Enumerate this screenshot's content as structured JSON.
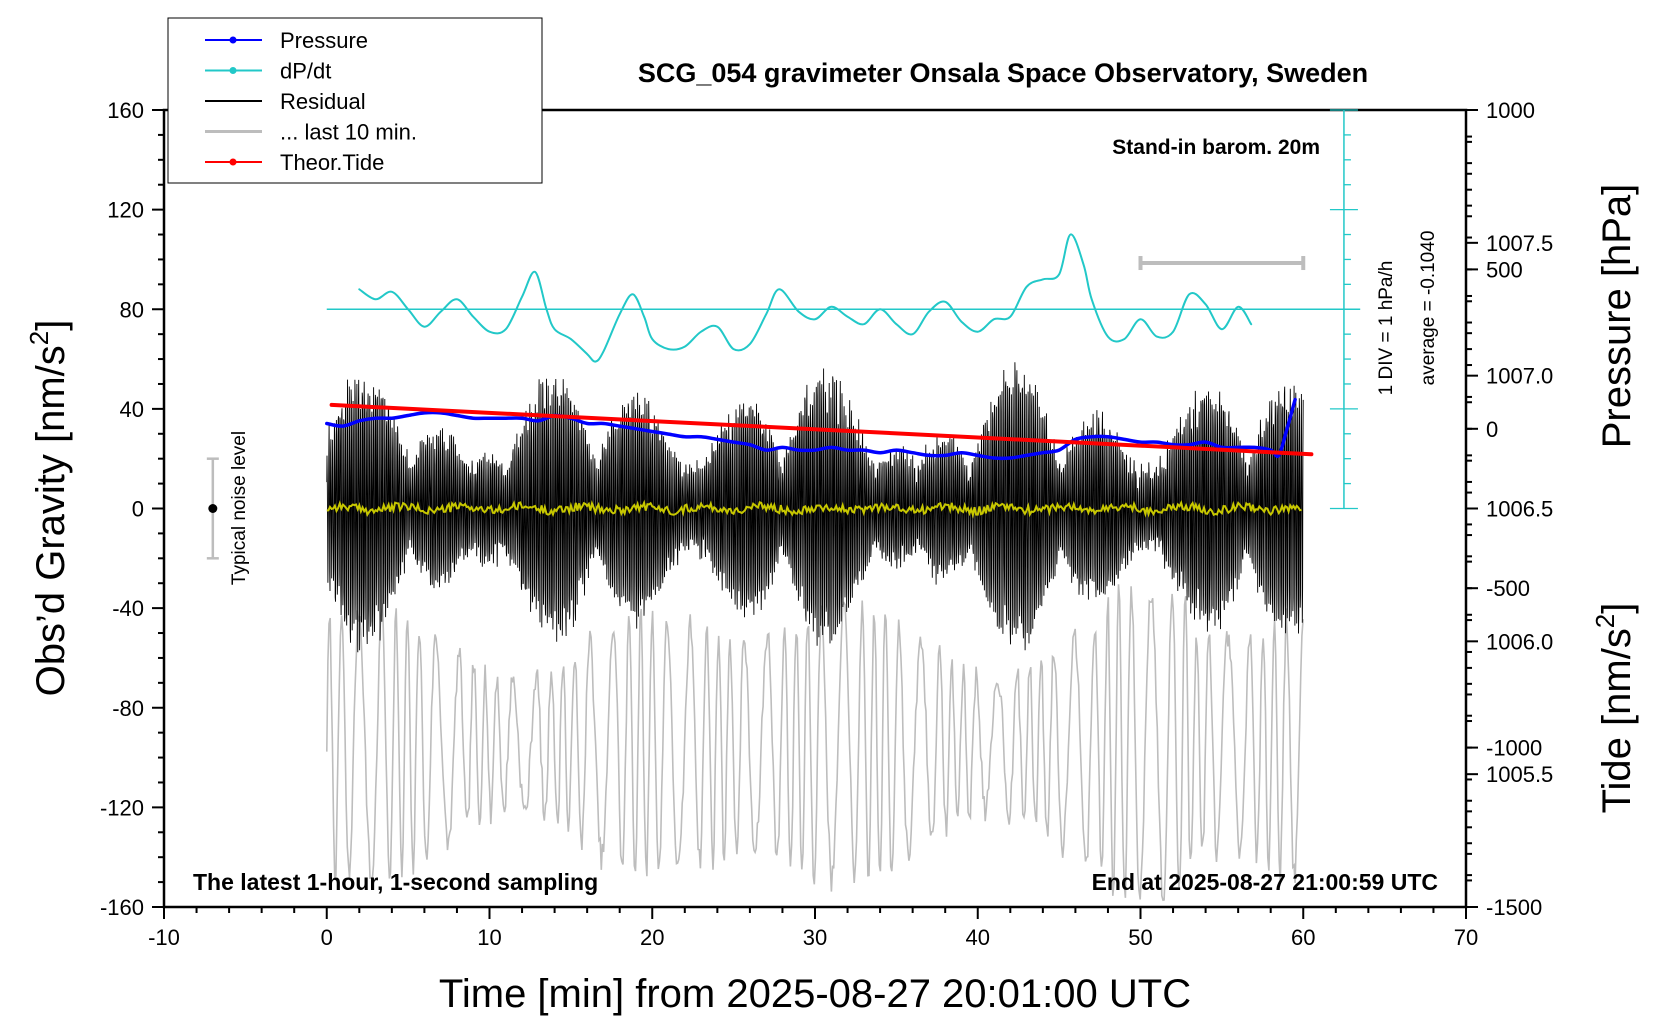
{
  "chart_data": {
    "type": "line",
    "title": "SCG_054 gravimeter Onsala Space Observatory, Sweden",
    "xlabel": "Time [min] from 2025-08-27 20:01:00 UTC",
    "ylabel_left": "Obs’d Gravity [nm/s",
    "ylabel_left_sup": "2",
    "ylabel_left_end": "]",
    "ylabel_right_pressure": "Pressure [hPa]",
    "ylabel_right_tide": "Tide [nm/s",
    "ylabel_right_tide_sup": "2",
    "ylabel_right_tide_end": "]",
    "xlim": [
      -10,
      70
    ],
    "ylim_left": [
      -160,
      160
    ],
    "x_ticks": [
      "-10",
      "0",
      "10",
      "20",
      "30",
      "40",
      "50",
      "60",
      "70"
    ],
    "y_ticks_left": [
      "160",
      "120",
      "80",
      "40",
      "0",
      "-40",
      "-80",
      "-120",
      "-160"
    ],
    "pressure_axis": {
      "ylim": [
        1005.0,
        1008.0
      ],
      "ticks": [
        "1007.5",
        "1007.0",
        "1006.5",
        "1006.0",
        "1005.5"
      ]
    },
    "tide_axis": {
      "ylim": [
        -1500,
        1000
      ],
      "ticks": [
        "1000",
        "500",
        "0",
        "-500",
        "-1000",
        "-1500"
      ]
    },
    "legend": {
      "placement": "top-left",
      "entries": [
        {
          "label": "Pressure",
          "color": "#0000ff",
          "marker": true
        },
        {
          "label": "dP/dt",
          "color": "#22c8c8",
          "marker": true
        },
        {
          "label": "Residual",
          "color": "#000000",
          "marker": false
        },
        {
          "label": "... last 10 min.",
          "color": "#bdbdbd",
          "marker": false
        },
        {
          "label": "Theor.Tide",
          "color": "#ff0000",
          "marker": true
        }
      ]
    },
    "annotations": {
      "barometer": "Stand-in barom. 20m",
      "dpdt_scale": "1 DIV = 1 hPa/h",
      "dpdt_average": "average = -0.1040",
      "noise_label": "Typical noise level",
      "bottom_left": "The latest 1-hour, 1-second sampling",
      "bottom_right": "End at 2025-08-27 21:00:59 UTC"
    },
    "noise_level": {
      "x": -7,
      "center": 0,
      "range": [
        -20,
        20
      ]
    },
    "last10_bar": {
      "y": 520,
      "x_range": [
        50,
        60
      ]
    },
    "series": [
      {
        "name": "Pressure",
        "axis": "pressure",
        "color": "#0000ff",
        "x": [
          0,
          1,
          2,
          3,
          4,
          5,
          6,
          7,
          8,
          9,
          10,
          11,
          12,
          13,
          14,
          15,
          16,
          17,
          18,
          19,
          20,
          21,
          22,
          23,
          24,
          25,
          26,
          27,
          28,
          29,
          30,
          31,
          32,
          33,
          34,
          35,
          36,
          37,
          38,
          39,
          40,
          41,
          42,
          43,
          44,
          45,
          46,
          47,
          48,
          49,
          50,
          51,
          52,
          53,
          54,
          55,
          56,
          57,
          58,
          58.5,
          59,
          59.5
        ],
        "values": [
          1006.82,
          1006.81,
          1006.83,
          1006.84,
          1006.84,
          1006.85,
          1006.86,
          1006.86,
          1006.85,
          1006.84,
          1006.84,
          1006.84,
          1006.84,
          1006.83,
          1006.85,
          1006.84,
          1006.82,
          1006.82,
          1006.81,
          1006.8,
          1006.79,
          1006.78,
          1006.77,
          1006.77,
          1006.76,
          1006.75,
          1006.74,
          1006.72,
          1006.73,
          1006.72,
          1006.72,
          1006.73,
          1006.72,
          1006.72,
          1006.71,
          1006.72,
          1006.71,
          1006.7,
          1006.7,
          1006.71,
          1006.7,
          1006.69,
          1006.69,
          1006.7,
          1006.71,
          1006.72,
          1006.76,
          1006.77,
          1006.77,
          1006.76,
          1006.75,
          1006.75,
          1006.74,
          1006.74,
          1006.75,
          1006.73,
          1006.73,
          1006.73,
          1006.72,
          1006.7,
          1006.8,
          1006.91
        ]
      },
      {
        "name": "dP/dt",
        "axis": "left",
        "color": "#22c8c8",
        "x": [
          2,
          3,
          4,
          5,
          6,
          7,
          8,
          9,
          10,
          11,
          12,
          12.8,
          13.5,
          14,
          15,
          16,
          16.5,
          17,
          18,
          18.8,
          19.5,
          20,
          21,
          22,
          23,
          24,
          25,
          26,
          27,
          27.8,
          29,
          30,
          31,
          32,
          33,
          34,
          35,
          36,
          37,
          38,
          39,
          40,
          41,
          42,
          43,
          44,
          45,
          45.7,
          46.5,
          47,
          48,
          49,
          50,
          51,
          52,
          53,
          54,
          55,
          56,
          56.8
        ],
        "values": [
          88,
          84,
          87,
          80,
          73,
          79,
          84,
          77,
          71,
          72,
          85,
          95,
          80,
          72,
          68,
          62,
          59,
          63,
          78,
          86,
          77,
          68,
          64,
          65,
          71,
          73,
          64,
          66,
          78,
          88,
          79,
          76,
          81,
          77,
          74,
          80,
          74,
          70,
          79,
          83,
          75,
          71,
          76,
          77,
          89,
          92,
          94,
          110,
          98,
          84,
          69,
          68,
          76,
          69,
          71,
          86,
          82,
          72,
          81,
          74
        ]
      },
      {
        "name": "Theor.Tide",
        "axis": "tide",
        "color": "#ff0000",
        "x": [
          0.3,
          60.5
        ],
        "values": [
          75,
          -80
        ]
      }
    ]
  }
}
